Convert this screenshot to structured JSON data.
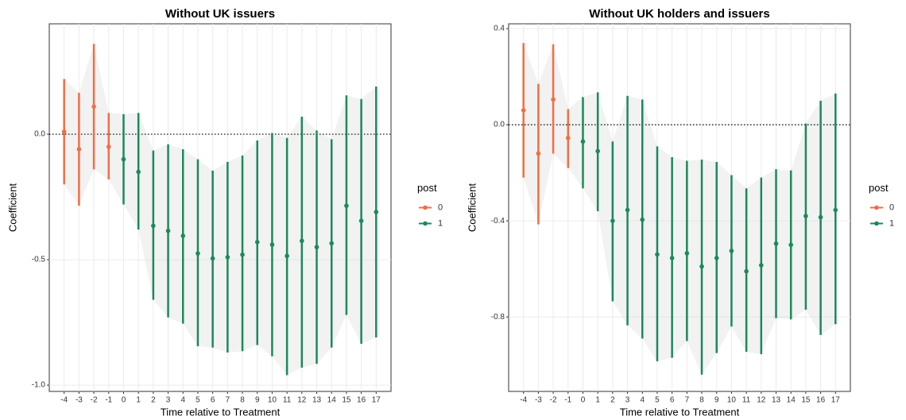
{
  "chart_data": [
    {
      "type": "errorbar",
      "title": "Without UK issuers",
      "x_label": "Time relative to Treatment",
      "y_label": "Coefficient",
      "legend_title": "post",
      "legend_position": "right",
      "grid": true,
      "reference_line": 0,
      "xlim": [
        -5,
        18
      ],
      "xticks": [
        -4,
        -3,
        -2,
        -1,
        0,
        1,
        2,
        3,
        4,
        5,
        6,
        7,
        8,
        9,
        10,
        11,
        12,
        13,
        14,
        15,
        16,
        17
      ],
      "ylim": [
        -1.025,
        0.44
      ],
      "yticks": [
        {
          "value": -1,
          "label": "-1.0"
        },
        {
          "value": -0.5,
          "label": "-0.5"
        },
        {
          "value": 0,
          "label": "0.0"
        }
      ],
      "series": [
        {
          "name": "0",
          "color": "#f46d43",
          "x": [
            -4,
            -3,
            -2,
            -1
          ],
          "values": [
            0.01,
            -0.06,
            0.11,
            -0.05
          ],
          "lower": [
            -0.2,
            -0.285,
            -0.14,
            -0.18
          ],
          "upper": [
            0.22,
            0.165,
            0.36,
            0.085
          ]
        },
        {
          "name": "1",
          "color": "#1a8a5a",
          "x": [
            0,
            1,
            2,
            3,
            4,
            5,
            6,
            7,
            8,
            9,
            10,
            11,
            12,
            13,
            14,
            15,
            16,
            17
          ],
          "values": [
            -0.1,
            -0.15,
            -0.365,
            -0.385,
            -0.405,
            -0.475,
            -0.495,
            -0.49,
            -0.48,
            -0.43,
            -0.44,
            -0.485,
            -0.425,
            -0.45,
            -0.435,
            -0.285,
            -0.345,
            -0.31
          ],
          "lower": [
            -0.28,
            -0.38,
            -0.66,
            -0.73,
            -0.755,
            -0.845,
            -0.85,
            -0.87,
            -0.865,
            -0.84,
            -0.885,
            -0.96,
            -0.93,
            -0.915,
            -0.85,
            -0.72,
            -0.835,
            -0.81
          ],
          "upper": [
            0.08,
            0.085,
            -0.065,
            -0.04,
            -0.06,
            -0.1,
            -0.145,
            -0.11,
            -0.085,
            -0.025,
            0.005,
            -0.015,
            0.07,
            0.015,
            -0.02,
            0.155,
            0.14,
            0.19
          ]
        }
      ]
    },
    {
      "type": "errorbar",
      "title": "Without UK holders and issuers",
      "x_label": "Time relative to Treatment",
      "y_label": "Coefficient",
      "legend_title": "post",
      "legend_position": "right",
      "grid": true,
      "reference_line": 0,
      "xlim": [
        -5,
        18
      ],
      "xticks": [
        -4,
        -3,
        -2,
        -1,
        0,
        1,
        2,
        3,
        4,
        5,
        6,
        7,
        8,
        9,
        10,
        11,
        12,
        13,
        14,
        15,
        16,
        17
      ],
      "ylim": [
        -1.11,
        0.42
      ],
      "yticks": [
        -0.8,
        -0.4,
        {
          "value": 0,
          "label": "0.0"
        },
        0.4
      ],
      "series": [
        {
          "name": "0",
          "color": "#f46d43",
          "x": [
            -4,
            -3,
            -2,
            -1
          ],
          "values": [
            0.06,
            -0.12,
            0.105,
            -0.055
          ],
          "lower": [
            -0.22,
            -0.415,
            -0.12,
            -0.18
          ],
          "upper": [
            0.34,
            0.17,
            0.335,
            0.065
          ]
        },
        {
          "name": "1",
          "color": "#1a8a5a",
          "x": [
            0,
            1,
            2,
            3,
            4,
            5,
            6,
            7,
            8,
            9,
            10,
            11,
            12,
            13,
            14,
            15,
            16,
            17
          ],
          "values": [
            -0.07,
            -0.11,
            -0.4,
            -0.355,
            -0.395,
            -0.54,
            -0.555,
            -0.535,
            -0.59,
            -0.555,
            -0.525,
            -0.61,
            -0.585,
            -0.495,
            -0.5,
            -0.38,
            -0.385,
            -0.355
          ],
          "lower": [
            -0.265,
            -0.36,
            -0.735,
            -0.835,
            -0.89,
            -0.985,
            -0.97,
            -0.9,
            -1.04,
            -0.95,
            -0.84,
            -0.945,
            -0.955,
            -0.805,
            -0.81,
            -0.77,
            -0.875,
            -0.83
          ],
          "upper": [
            0.115,
            0.135,
            -0.07,
            0.12,
            0.105,
            -0.09,
            -0.135,
            -0.15,
            -0.145,
            -0.155,
            -0.21,
            -0.265,
            -0.22,
            -0.185,
            -0.19,
            0.005,
            0.1,
            0.13
          ]
        }
      ]
    }
  ]
}
